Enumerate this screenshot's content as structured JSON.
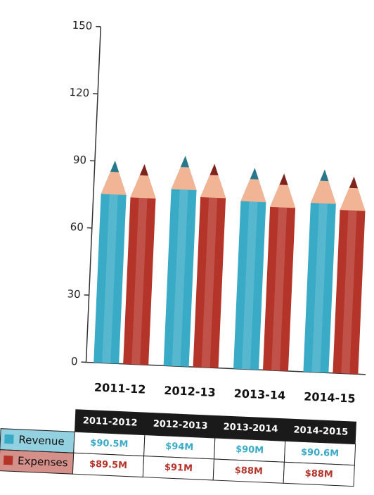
{
  "chart_data": {
    "type": "bar",
    "categories": [
      "2011-12",
      "2012-13",
      "2013-14",
      "2014-15"
    ],
    "series": [
      {
        "name": "Revenue",
        "color": "#3aabc6",
        "values": [
          90.5,
          94,
          90,
          90.6
        ],
        "value_labels": [
          "$90.5M",
          "$94M",
          "$90M",
          "$90.6M"
        ]
      },
      {
        "name": "Expenses",
        "color": "#b5342a",
        "values": [
          89.5,
          91,
          88,
          88
        ],
        "value_labels": [
          "$89.5M",
          "$91M",
          "$88M",
          "$88M"
        ]
      }
    ],
    "ylim": [
      0,
      150
    ],
    "yticks": [
      0,
      30,
      60,
      90,
      120,
      150
    ],
    "table_header": [
      "2011-2012",
      "2012-2013",
      "2013-2014",
      "2014-2015"
    ]
  }
}
